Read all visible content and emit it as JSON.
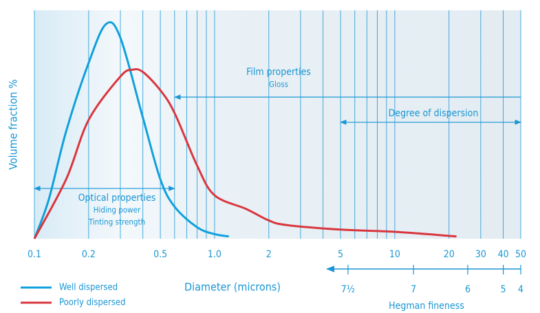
{
  "chart_data": {
    "type": "line",
    "y_label": "Volume fraction %",
    "x_label": "Diameter (microns)",
    "log_x": true,
    "xlim": [
      0.1,
      50
    ],
    "ylim": [
      0,
      100
    ],
    "xticks": [
      0.1,
      0.2,
      0.5,
      {
        "value": 1,
        "label": "1.0"
      },
      2,
      5,
      10,
      20,
      30,
      40,
      50
    ],
    "xgrid": [
      0.1,
      0.2,
      0.3,
      0.4,
      0.5,
      0.6,
      0.7,
      0.8,
      0.9,
      1,
      2,
      3,
      4,
      5,
      6,
      7,
      8,
      9,
      10,
      20,
      30,
      40,
      50
    ],
    "series": [
      {
        "name": "Well dispersed",
        "color": "#0fa0dc",
        "x": [
          0.1,
          0.12,
          0.15,
          0.2,
          0.25,
          0.3,
          0.4,
          0.5,
          0.6,
          0.8,
          1.0,
          1.2
        ],
        "values": [
          0,
          17,
          47,
          77,
          94,
          88,
          53,
          26,
          14,
          5,
          2,
          1
        ]
      },
      {
        "name": "Poorly dispersed",
        "color": "#d9363e",
        "x": [
          0.1,
          0.15,
          0.2,
          0.3,
          0.35,
          0.4,
          0.5,
          0.6,
          0.8,
          1.0,
          1.5,
          2,
          2.5,
          5,
          10,
          22
        ],
        "values": [
          0,
          26,
          52,
          71,
          74,
          73,
          65,
          55,
          32,
          19,
          13,
          8,
          6,
          4,
          3,
          1
        ]
      }
    ],
    "annotations": [
      {
        "lines": [
          "Film properties",
          "Gloss"
        ],
        "x_range": [
          0.6,
          50
        ],
        "y": 62,
        "arrows": "start"
      },
      {
        "lines": [
          "Degree of dispersion"
        ],
        "x_range": [
          5,
          50
        ],
        "y": 51,
        "arrows": "both"
      },
      {
        "lines": [
          "Optical properties",
          "Hiding power",
          "Tinting strength"
        ],
        "x_range": [
          0.1,
          0.6
        ],
        "y": 22,
        "arrows": "both"
      }
    ],
    "hegman": {
      "label": "Hegman fineness",
      "arrow_range": [
        4.2,
        50
      ],
      "ticks": [
        {
          "value": 5.5,
          "label": "7½"
        },
        {
          "value": 12.7,
          "label": "7"
        },
        {
          "value": 25.4,
          "label": "6"
        },
        {
          "value": 40,
          "label": "5"
        },
        {
          "value": 50,
          "label": "4"
        }
      ]
    },
    "legend": "bottom-left"
  }
}
